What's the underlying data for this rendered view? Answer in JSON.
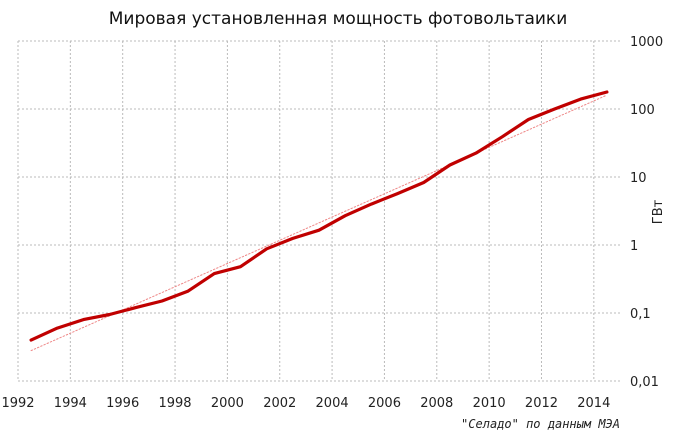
{
  "chart_data": {
    "type": "line",
    "title": "Мировая установленная мощность фотовольтаики",
    "xlabel": "",
    "ylabel": "ГВт",
    "source_note": "\"Селадо\" по данным МЭА",
    "xlim": [
      1992,
      2015
    ],
    "ylim": [
      0.01,
      1000
    ],
    "y_scale": "log",
    "grid": true,
    "x_ticks": [
      "1992",
      "1994",
      "1996",
      "1998",
      "2000",
      "2002",
      "2004",
      "2006",
      "2008",
      "2010",
      "2012",
      "2014"
    ],
    "y_ticks": [
      {
        "value": 1000,
        "label": "1000"
      },
      {
        "value": 100,
        "label": "100"
      },
      {
        "value": 10,
        "label": "10"
      },
      {
        "value": 1,
        "label": "1"
      },
      {
        "value": 0.1,
        "label": "0,1"
      },
      {
        "value": 0.01,
        "label": "0,01"
      }
    ],
    "series": [
      {
        "color": "#c00000",
        "style": "solid",
        "x": [
          1992.5,
          1993.5,
          1994.5,
          1995.5,
          1996.5,
          1997.5,
          1998.5,
          1999.5,
          2000.5,
          2001.5,
          2002.5,
          2003.5,
          2004.5,
          2005.5,
          2006.5,
          2007.5,
          2008.5,
          2009.5,
          2010.5,
          2011.5,
          2012.5,
          2013.5,
          2014.5
        ],
        "y": [
          0.04,
          0.06,
          0.08,
          0.095,
          0.12,
          0.15,
          0.21,
          0.38,
          0.48,
          0.88,
          1.25,
          1.65,
          2.7,
          4.0,
          5.7,
          8.3,
          15,
          22.5,
          39,
          70,
          100,
          140,
          178
        ]
      },
      {
        "color": "#ee8888",
        "style": "dotted",
        "x": [
          1992.5,
          2014.5
        ],
        "y": [
          0.028,
          160
        ]
      }
    ]
  }
}
